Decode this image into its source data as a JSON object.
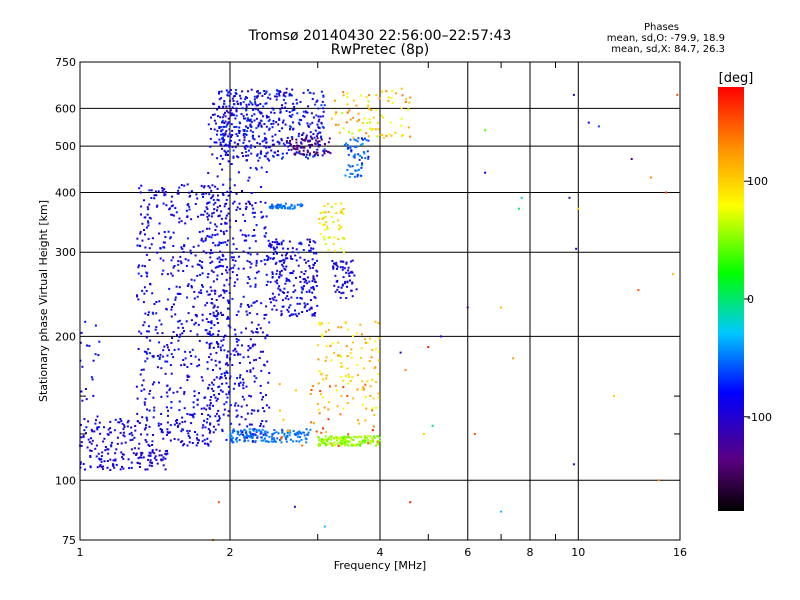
{
  "title": "Tromsø 20140430 22:56:00–22:57:43",
  "subtitle": "RwPretec (8p)",
  "phases": {
    "header": "Phases",
    "line_o": "mean, sd,O: -79.9, 18.9",
    "line_x": "mean, sd,X:  84.7, 26.3"
  },
  "chart_data": {
    "type": "scatter",
    "title": "Tromsø 20140430 22:56:00–22:57:43",
    "subtitle": "RwPretec (8p)",
    "xlabel": "Frequency [MHz]",
    "ylabel": "Stationary phase Virtual Height [km]",
    "x_scale": "log",
    "y_scale": "log",
    "xlim": [
      1,
      16
    ],
    "ylim": [
      75,
      750
    ],
    "x_ticks": [
      1,
      2,
      4,
      6,
      8,
      10,
      16
    ],
    "x_tick_labels": [
      "1",
      "2",
      "4",
      "6",
      "8",
      "10",
      "16"
    ],
    "x_minor_ticks": [
      3,
      5,
      7,
      9
    ],
    "y_ticks": [
      75,
      100,
      200,
      300,
      400,
      500,
      600,
      750
    ],
    "y_tick_labels": [
      "75",
      "100",
      "200",
      "300",
      "400",
      "500",
      "600",
      "750"
    ],
    "y_minor_ticks": [
      125,
      150
    ],
    "grid": true,
    "colorbar": {
      "label": "[deg]",
      "range": [
        -180,
        180
      ],
      "ticks": [
        -100,
        0,
        100
      ],
      "tick_labels": [
        "-100",
        "0",
        "100"
      ],
      "colormap": "rainbow (black-purple-blue-cyan-green-yellow-orange-red)"
    },
    "clusters": [
      {
        "name": "",
        "f_range": [
          1.0,
          1.5
        ],
        "h_range": [
          105,
          118
        ],
        "phase_range": [
          -110,
          -80
        ],
        "count": 120
      },
      {
        "name": "",
        "f_range": [
          1.0,
          1.9
        ],
        "h_range": [
          118,
          135
        ],
        "phase_range": [
          -110,
          -70
        ],
        "count": 160
      },
      {
        "name": "",
        "f_range": [
          1.0,
          1.1
        ],
        "h_range": [
          135,
          215
        ],
        "phase_range": [
          -100,
          -70
        ],
        "count": 20
      },
      {
        "name": "",
        "f_range": [
          1.3,
          2.0
        ],
        "h_range": [
          135,
          420
        ],
        "phase_range": [
          -105,
          -70
        ],
        "count": 560
      },
      {
        "name": "",
        "f_range": [
          1.8,
          2.4
        ],
        "h_range": [
          120,
          640
        ],
        "phase_range": [
          -105,
          -70
        ],
        "count": 520
      },
      {
        "name": "",
        "f_range": [
          2.0,
          2.9
        ],
        "h_range": [
          120,
          128
        ],
        "phase_range": [
          -60,
          -40
        ],
        "count": 140
      },
      {
        "name": "",
        "f_range": [
          1.9,
          3.1
        ],
        "h_range": [
          470,
          660
        ],
        "phase_range": [
          -110,
          -60
        ],
        "count": 420
      },
      {
        "name": "",
        "f_range": [
          2.4,
          3.0
        ],
        "h_range": [
          220,
          320
        ],
        "phase_range": [
          -105,
          -70
        ],
        "count": 220
      },
      {
        "name": "",
        "f_range": [
          2.4,
          2.8
        ],
        "h_range": [
          370,
          380
        ],
        "phase_range": [
          -60,
          -40
        ],
        "count": 50
      },
      {
        "name": "",
        "f_range": [
          2.6,
          3.2
        ],
        "h_range": [
          480,
          520
        ],
        "phase_range": [
          -150,
          -130
        ],
        "count": 60
      },
      {
        "name": "",
        "f_range": [
          3.0,
          4.0
        ],
        "h_range": [
          118,
          124
        ],
        "phase_range": [
          40,
          70
        ],
        "count": 140
      },
      {
        "name": "",
        "f_range": [
          3.2,
          3.6
        ],
        "h_range": [
          240,
          290
        ],
        "phase_range": [
          -100,
          -80
        ],
        "count": 60
      },
      {
        "name": "",
        "f_range": [
          3.4,
          3.8
        ],
        "h_range": [
          430,
          520
        ],
        "phase_range": [
          -80,
          -40
        ],
        "count": 60
      },
      {
        "name": "",
        "f_range": [
          3.0,
          3.4
        ],
        "h_range": [
          300,
          380
        ],
        "phase_range": [
          60,
          110
        ],
        "count": 50
      },
      {
        "name": "",
        "f_range": [
          3.2,
          4.6
        ],
        "h_range": [
          520,
          660
        ],
        "phase_range": [
          60,
          140
        ],
        "count": 90
      },
      {
        "name": "",
        "f_range": [
          3.0,
          4.0
        ],
        "h_range": [
          140,
          215
        ],
        "phase_range": [
          70,
          130
        ],
        "count": 110
      },
      {
        "name": "",
        "f_range": [
          2.5,
          4.0
        ],
        "h_range": [
          118,
          160
        ],
        "phase_range": [
          100,
          170
        ],
        "count": 40
      }
    ],
    "sparse_points": [
      {
        "f": 9.8,
        "h": 640,
        "phase": -100
      },
      {
        "f": 10.5,
        "h": 560,
        "phase": -90
      },
      {
        "f": 11.0,
        "h": 550,
        "phase": -60
      },
      {
        "f": 12.8,
        "h": 470,
        "phase": -130
      },
      {
        "f": 14.0,
        "h": 430,
        "phase": 130
      },
      {
        "f": 15.0,
        "h": 400,
        "phase": 160
      },
      {
        "f": 15.8,
        "h": 640,
        "phase": 150
      },
      {
        "f": 15.5,
        "h": 270,
        "phase": 110
      },
      {
        "f": 13.2,
        "h": 250,
        "phase": 150
      },
      {
        "f": 11.8,
        "h": 150,
        "phase": 100
      },
      {
        "f": 14.5,
        "h": 100,
        "phase": 130
      },
      {
        "f": 9.8,
        "h": 108,
        "phase": -110
      },
      {
        "f": 9.9,
        "h": 305,
        "phase": -100
      },
      {
        "f": 10.0,
        "h": 370,
        "phase": 100
      },
      {
        "f": 9.6,
        "h": 390,
        "phase": -110
      },
      {
        "f": 7.6,
        "h": 370,
        "phase": 0
      },
      {
        "f": 7.7,
        "h": 390,
        "phase": -20
      },
      {
        "f": 7.4,
        "h": 180,
        "phase": 120
      },
      {
        "f": 7.0,
        "h": 86,
        "phase": -30
      },
      {
        "f": 7.0,
        "h": 230,
        "phase": 110
      },
      {
        "f": 6.5,
        "h": 540,
        "phase": 40
      },
      {
        "f": 6.5,
        "h": 440,
        "phase": -90
      },
      {
        "f": 6.0,
        "h": 230,
        "phase": -120
      },
      {
        "f": 6.2,
        "h": 125,
        "phase": 150
      },
      {
        "f": 5.0,
        "h": 190,
        "phase": 170
      },
      {
        "f": 4.6,
        "h": 90,
        "phase": 170
      },
      {
        "f": 4.9,
        "h": 125,
        "phase": 100
      },
      {
        "f": 5.3,
        "h": 200,
        "phase": -90
      },
      {
        "f": 4.4,
        "h": 185,
        "phase": -110
      },
      {
        "f": 2.7,
        "h": 88,
        "phase": -110
      },
      {
        "f": 3.1,
        "h": 80,
        "phase": -30
      },
      {
        "f": 1.9,
        "h": 90,
        "phase": 150
      },
      {
        "f": 1.85,
        "h": 75,
        "phase": 130
      },
      {
        "f": 4.5,
        "h": 170,
        "phase": 130
      },
      {
        "f": 5.1,
        "h": 130,
        "phase": -10
      },
      {
        "f": 4.2,
        "h": 560,
        "phase": 80
      }
    ]
  }
}
